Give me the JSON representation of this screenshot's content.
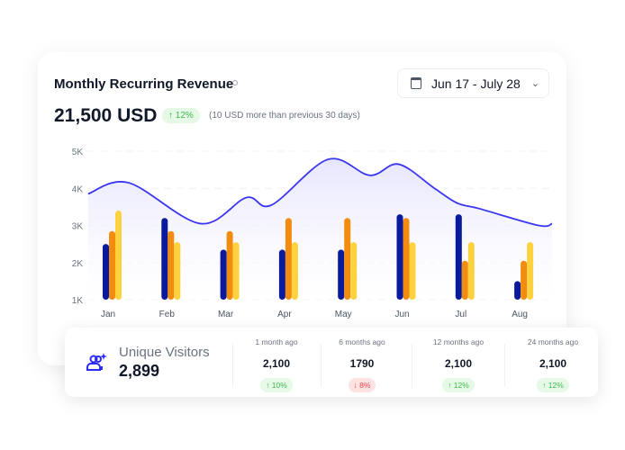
{
  "header": {
    "title": "Monthly Recurring Revenue",
    "date_range": "Jun 17 - July 28",
    "amount": "21,500 USD",
    "change": "↑ 12%",
    "note": "(10 USD more than previous 30 days)"
  },
  "chart_data": {
    "type": "bar",
    "categories": [
      "Jan",
      "Feb",
      "Mar",
      "Apr",
      "May",
      "Jun",
      "Jul",
      "Aug"
    ],
    "yticks": [
      "1K",
      "2K",
      "3K",
      "4K",
      "5K"
    ],
    "ylim": [
      1000,
      5000
    ],
    "grid": true,
    "series": [
      {
        "values": [
          2500,
          3200,
          2350,
          2350,
          2350,
          3300,
          3300,
          1500
        ],
        "color": "#0a1a9c"
      },
      {
        "values": [
          2850,
          2850,
          2850,
          3200,
          3200,
          3200,
          2050,
          2050
        ],
        "color": "#f28c0f"
      },
      {
        "values": [
          3400,
          2550,
          2550,
          2550,
          2550,
          2550,
          2550,
          2550
        ],
        "color": "#fdd23e"
      }
    ],
    "line": {
      "type": "area",
      "color": "#3a35f0",
      "x": [
        -0.34,
        0.35,
        1.57,
        2.35,
        2.78,
        3.74,
        4.45,
        4.94,
        5.55,
        5.94,
        6.32,
        7.32,
        7.55
      ],
      "y": [
        3850,
        4150,
        3050,
        3750,
        3550,
        4780,
        4350,
        4650,
        4000,
        3600,
        3450,
        3000,
        3050
      ]
    }
  },
  "visitors": {
    "label": "Unique Visitors",
    "value": "2,899",
    "periods": [
      {
        "label": "1 month ago",
        "value": "2,100",
        "change": "↑ 10%",
        "trend": "up"
      },
      {
        "label": "6 months ago",
        "value": "1790",
        "change": "↓ 8%",
        "trend": "down"
      },
      {
        "label": "12 months ago",
        "value": "2,100",
        "change": "↑ 12%",
        "trend": "up"
      },
      {
        "label": "24 months ago",
        "value": "2,100",
        "change": "↑ 12%",
        "trend": "up"
      }
    ]
  }
}
